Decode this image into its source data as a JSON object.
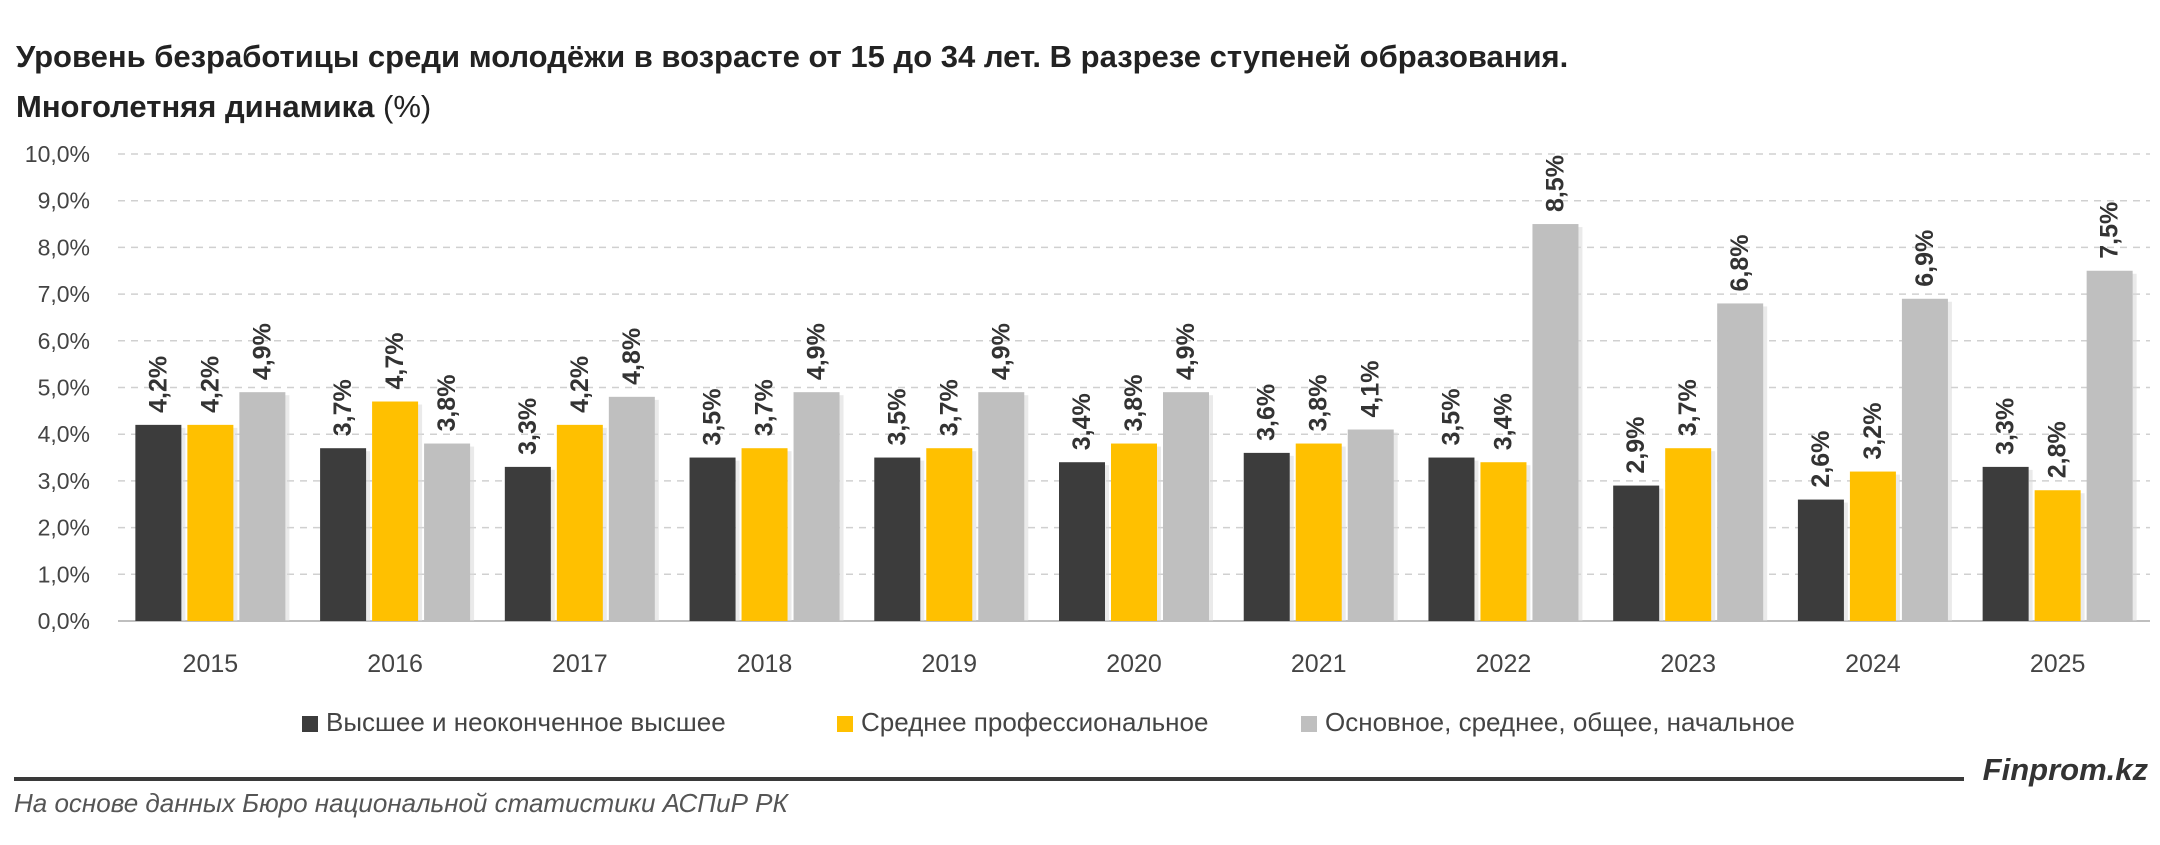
{
  "header": {
    "title": "Уровень безработицы среди молодёжи в возрасте от 15 до 34 лет. В разрезе ступеней образования.",
    "subtitle_bold": "Многолетняя динамика",
    "subtitle_unit": "(%)"
  },
  "footer": {
    "brand": "Finprom.kz",
    "source": "На основе данных Бюро национальной статистики АСПиР РК"
  },
  "chart_data": {
    "type": "bar",
    "categories": [
      "2015",
      "2016",
      "2017",
      "2018",
      "2019",
      "2020",
      "2021",
      "2022",
      "2023",
      "2024",
      "2025"
    ],
    "series": [
      {
        "name": "Высшее и неоконченное высшее",
        "color": "#3c3c3c",
        "values": [
          4.2,
          3.7,
          3.3,
          3.5,
          3.5,
          3.4,
          3.6,
          3.5,
          2.9,
          2.6,
          3.3
        ],
        "labels": [
          "4,2%",
          "3,7%",
          "3,3%",
          "3,5%",
          "3,5%",
          "3,4%",
          "3,6%",
          "3,5%",
          "2,9%",
          "2,6%",
          "3,3%"
        ]
      },
      {
        "name": "Среднее профессиональное",
        "color": "#ffc000",
        "values": [
          4.2,
          4.7,
          4.2,
          3.7,
          3.7,
          3.8,
          3.8,
          3.4,
          3.7,
          3.2,
          2.8
        ],
        "labels": [
          "4,2%",
          "4,7%",
          "4,2%",
          "3,7%",
          "3,7%",
          "3,8%",
          "3,8%",
          "3,4%",
          "3,7%",
          "3,2%",
          "2,8%"
        ]
      },
      {
        "name": "Основное, среднее, общее, начальное",
        "color": "#bfbfbf",
        "values": [
          4.9,
          3.8,
          4.8,
          4.9,
          4.9,
          4.9,
          4.1,
          8.5,
          6.8,
          6.9,
          7.5
        ],
        "labels": [
          "4,9%",
          "3,8%",
          "4,8%",
          "4,9%",
          "4,9%",
          "4,9%",
          "4,1%",
          "8,5%",
          "6,8%",
          "6,9%",
          "7,5%"
        ]
      }
    ],
    "ylim": [
      0,
      10
    ],
    "yticks": [
      "0,0%",
      "1,0%",
      "2,0%",
      "3,0%",
      "4,0%",
      "5,0%",
      "6,0%",
      "7,0%",
      "8,0%",
      "9,0%",
      "10,0%"
    ],
    "grid": true,
    "legend_position": "bottom"
  }
}
